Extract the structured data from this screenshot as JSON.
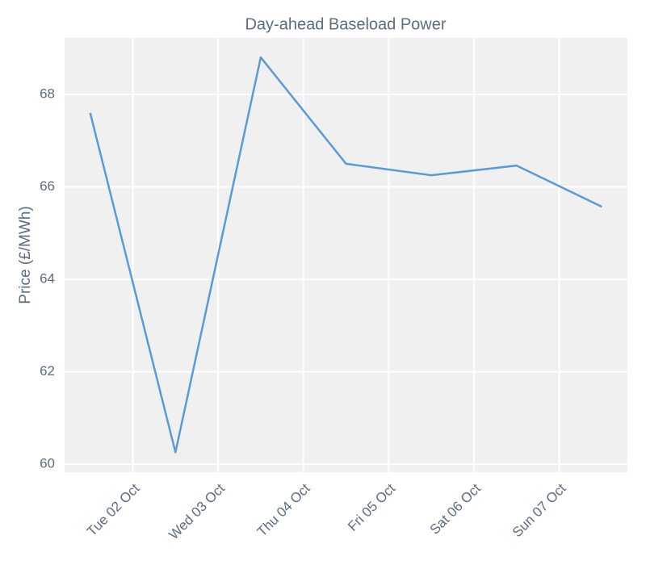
{
  "chart_data": {
    "type": "line",
    "title": "Day-ahead Baseload Power",
    "y_label": "Price (£/MWh)",
    "x": [
      1.5,
      2.5,
      3.5,
      4.5,
      5.5,
      6.5,
      7.5
    ],
    "series": [
      {
        "name": "Day-ahead Baseload",
        "color": "#5b9bd5",
        "values": [
          67.6,
          60.26,
          68.8,
          66.5,
          66.25,
          66.46,
          65.57
        ]
      }
    ],
    "xlim": [
      1.2,
      7.8
    ],
    "xticks": [
      {
        "value": 2,
        "label": "Tue 02 Oct"
      },
      {
        "value": 3,
        "label": "Wed 03 Oct"
      },
      {
        "value": 4,
        "label": "Thu 04 Oct"
      },
      {
        "value": 5,
        "label": "Fri 05 Oct"
      },
      {
        "value": 6,
        "label": "Sat 06 Oct"
      },
      {
        "value": 7,
        "label": "Sun 07 Oct"
      }
    ],
    "ylim": [
      59.83,
      69.22
    ],
    "yticks": [
      60,
      62,
      64,
      66,
      68
    ],
    "grid": true
  }
}
